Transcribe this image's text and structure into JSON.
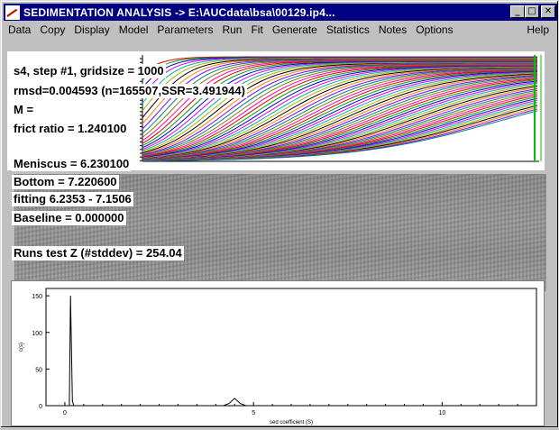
{
  "window": {
    "title": "SEDIMENTATION ANALYSIS -> E:\\AUCdata\\bsa\\00129.ip4...",
    "buttons": {
      "minimize": "_",
      "maximize": "□",
      "close": "✕"
    }
  },
  "menu": [
    {
      "label": "Data"
    },
    {
      "label": "Copy"
    },
    {
      "label": "Display"
    },
    {
      "label": "Model"
    },
    {
      "label": "Parameters"
    },
    {
      "label": "Run"
    },
    {
      "label": "Fit"
    },
    {
      "label": "Generate"
    },
    {
      "label": "Statistics"
    },
    {
      "label": "Notes"
    },
    {
      "label": "Options"
    }
  ],
  "help_label": "Help",
  "info": {
    "line1": "s4, step #1, gridsize = 1000",
    "line2": "rmsd=0.004593 (n=165507,SSR=3.491944)",
    "line3": "M =",
    "line4": "frict ratio = 1.240100",
    "line5": "Meniscus = 6.230100",
    "line6": "Bottom = 7.220600",
    "line7": "fitting 6.2353 - 7.1506",
    "line8": "Baseline = 0.000000",
    "line9": "Runs test Z (#stddev) = 254.04"
  },
  "chart_data": {
    "type": "line",
    "title": "",
    "xlabel": "sed coefficient (S)",
    "ylabel": "c(s)",
    "xlim": [
      -0.5,
      12.5
    ],
    "ylim": [
      0,
      160
    ],
    "x_ticks": [
      0,
      5,
      10
    ],
    "y_ticks": [
      0,
      50,
      100,
      150
    ],
    "series": [
      {
        "x": [
          0.0,
          0.12,
          0.15,
          0.2,
          0.24,
          0.28,
          4.2,
          4.35,
          4.5,
          4.65,
          4.8,
          12.3
        ],
        "values": [
          0,
          0,
          150,
          6,
          0,
          0,
          0,
          3,
          10,
          3,
          0,
          0
        ]
      }
    ]
  }
}
